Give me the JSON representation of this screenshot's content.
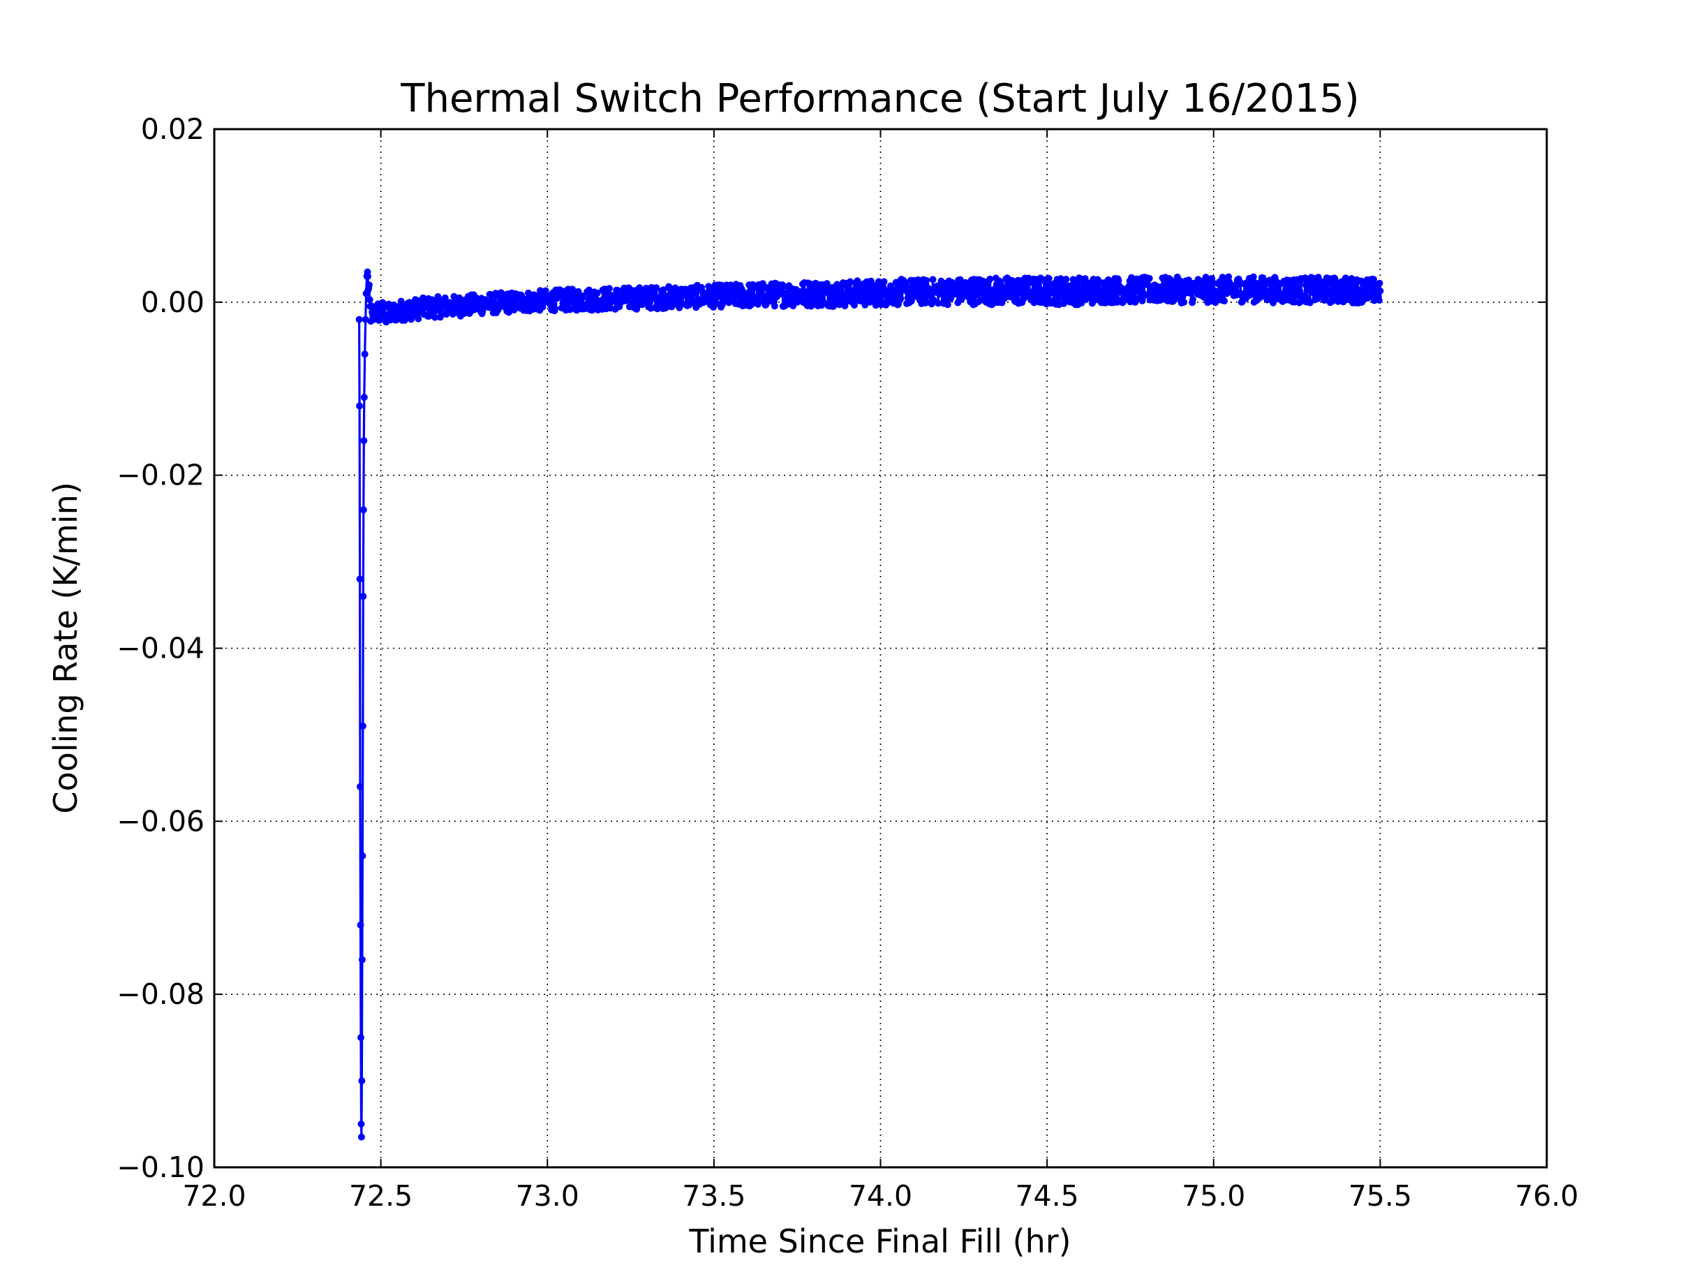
{
  "chart_data": {
    "type": "line",
    "title": "Thermal Switch Performance (Start July 16/2015)",
    "xlabel": "Time Since Final Fill (hr)",
    "ylabel": "Cooling Rate (K/min)",
    "xlim": [
      72.0,
      76.0
    ],
    "ylim": [
      -0.1,
      0.02
    ],
    "xticks": [
      "72.0",
      "72.5",
      "73.0",
      "73.5",
      "74.0",
      "74.5",
      "75.0",
      "75.5",
      "76.0"
    ],
    "yticks": [
      "0.02",
      "0.00",
      "−0.02",
      "−0.04",
      "−0.06",
      "−0.08",
      "−0.10"
    ],
    "grid": true,
    "grid_style": "dotted",
    "marker": "dot",
    "series_color": "#0000ff",
    "series": [
      {
        "x": [
          72.435,
          72.436,
          72.437,
          72.438,
          72.439,
          72.44,
          72.441,
          72.442,
          72.443,
          72.444,
          72.445,
          72.446,
          72.447,
          72.448,
          72.449,
          72.45,
          72.452,
          72.454,
          72.456,
          72.458,
          72.46,
          72.462,
          72.465,
          72.468,
          72.472,
          72.476,
          72.48,
          72.485,
          72.49,
          72.5,
          72.52,
          72.55,
          72.6,
          72.65,
          72.7,
          72.75,
          72.8,
          72.85,
          72.9,
          72.95,
          73.0,
          73.1,
          73.2,
          73.3,
          73.4,
          73.5,
          73.6,
          73.7,
          73.8,
          73.9,
          74.0,
          74.1,
          74.2,
          74.3,
          74.4,
          74.5,
          74.6,
          74.7,
          74.8,
          74.9,
          75.0,
          75.1,
          75.2,
          75.3,
          75.4,
          75.5
        ],
        "y": [
          -0.002,
          -0.012,
          -0.032,
          -0.056,
          -0.072,
          -0.085,
          -0.095,
          -0.0965,
          -0.09,
          -0.076,
          -0.064,
          -0.049,
          -0.034,
          -0.024,
          -0.016,
          -0.011,
          -0.006,
          -0.002,
          0.001,
          0.003,
          0.0035,
          0.002,
          0.0005,
          -0.001,
          -0.0015,
          -0.002,
          -0.0015,
          -0.001,
          -0.0012,
          -0.001,
          -0.0015,
          -0.001,
          -0.0008,
          -0.0006,
          -0.0005,
          -0.0004,
          -0.0002,
          -0.0001,
          0.0,
          0.0001,
          0.0002,
          0.0003,
          0.0004,
          0.0005,
          0.0006,
          0.0007,
          0.0008,
          0.0009,
          0.001,
          0.001,
          0.0011,
          0.0012,
          0.0012,
          0.0013,
          0.0013,
          0.0013,
          0.0013,
          0.0014,
          0.0014,
          0.0014,
          0.0014,
          0.0015,
          0.0014,
          0.0014,
          0.0014,
          0.0013
        ],
        "noise_amplitude": [
          0,
          0,
          0,
          0,
          0,
          0,
          0,
          0,
          0,
          0,
          0,
          0,
          0,
          0,
          0,
          0,
          0,
          0,
          0,
          0,
          0,
          0.0015,
          0.0015,
          0.0015,
          0.0014,
          0.0014,
          0.0013,
          0.0013,
          0.0013,
          0.0013,
          0.0013,
          0.0012,
          0.0012,
          0.0012,
          0.0012,
          0.0012,
          0.0012,
          0.0012,
          0.0012,
          0.0012,
          0.0012,
          0.0013,
          0.0013,
          0.0013,
          0.0013,
          0.0013,
          0.0014,
          0.0014,
          0.0015,
          0.0015,
          0.0015,
          0.0015,
          0.0015,
          0.0016,
          0.0016,
          0.0016,
          0.0016,
          0.0015,
          0.0015,
          0.0015,
          0.0015,
          0.0015,
          0.0015,
          0.0015,
          0.0015,
          0.0014
        ]
      }
    ]
  }
}
